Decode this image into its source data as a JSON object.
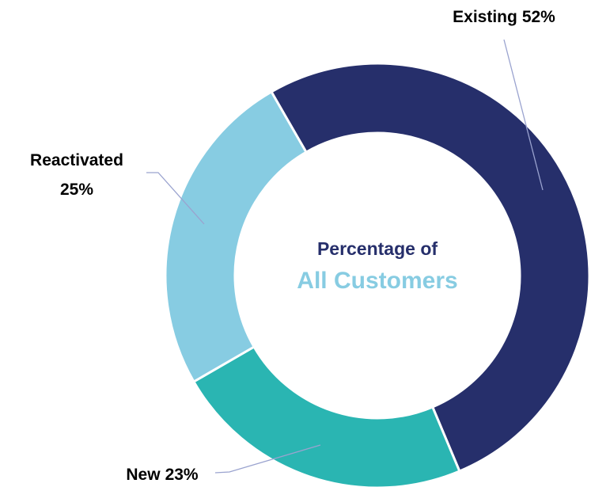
{
  "chart_data": {
    "type": "donut",
    "title": "Percentage of",
    "subtitle": "All Customers",
    "categories": [
      "Existing",
      "New",
      "Reactivated"
    ],
    "values": [
      52,
      23,
      25
    ],
    "value_labels": [
      "52%",
      "23%",
      "25%"
    ],
    "colors": [
      "#262f6b",
      "#2ab5b2",
      "#87cce2"
    ]
  }
}
